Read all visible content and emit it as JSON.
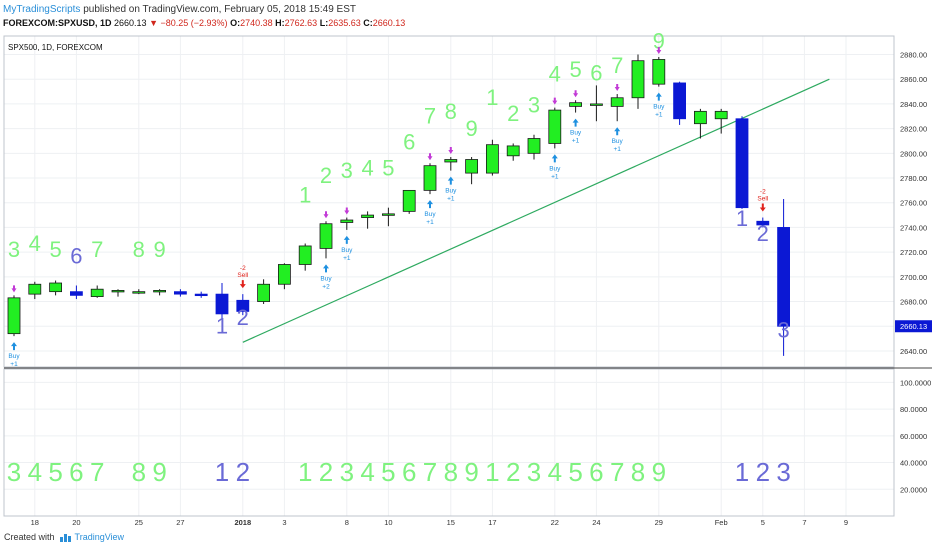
{
  "header": {
    "brand": "MyTradingScripts",
    "published": " published on TradingView.com, February 05, 2018 15:49 EST",
    "symbol": "FOREXCOM:SPXUSD, 1D",
    "price": "2660.13",
    "change": "▼ −80.25 (−2.93%)",
    "o_label": "O:",
    "o": "2740.38",
    "h_label": "H:",
    "h": "2762.63",
    "l_label": "L:",
    "l": "2635.63",
    "c_label": "C:",
    "c": "2660.13"
  },
  "footer": {
    "created": "Created with",
    "tv": "TradingView"
  },
  "colors": {
    "up": "#22ee22",
    "down": "#0b18d4",
    "trend": "#2eaa60",
    "sell": "#e0221c",
    "buy": "#1e90e0",
    "setup_buy": "#7ff27f",
    "setup_sell": "#6a6ad6",
    "marker": "#c23ad6"
  },
  "chart_data": [
    {
      "type": "candlestick",
      "title": "SPX500, 1D, FOREXCOM",
      "ylim": [
        2627,
        2895
      ],
      "y_ticks": [
        2640,
        2660,
        2680,
        2700,
        2720,
        2740,
        2760,
        2780,
        2800,
        2820,
        2840,
        2860,
        2880
      ],
      "y_tick_labels": [
        "2640.00",
        "2660.00",
        "2680.00",
        "2700.00",
        "2720.00",
        "2740.00",
        "2760.00",
        "2780.00",
        "2800.00",
        "2820.00",
        "2840.00",
        "2860.00",
        "2880.00"
      ],
      "current_price_label": "2660.13",
      "x_tick_labels": [
        {
          "i": 1,
          "label": "18"
        },
        {
          "i": 3,
          "label": "20"
        },
        {
          "i": 6,
          "label": "25"
        },
        {
          "i": 8,
          "label": "27"
        },
        {
          "i": 11,
          "label": "2018"
        },
        {
          "i": 13,
          "label": "3"
        },
        {
          "i": 16,
          "label": "8"
        },
        {
          "i": 18,
          "label": "10"
        },
        {
          "i": 21,
          "label": "15"
        },
        {
          "i": 23,
          "label": "17"
        },
        {
          "i": 26,
          "label": "22"
        },
        {
          "i": 28,
          "label": "24"
        },
        {
          "i": 31,
          "label": "29"
        },
        {
          "i": 34,
          "label": "Feb"
        },
        {
          "i": 36,
          "label": "5"
        },
        {
          "i": 38,
          "label": "7"
        },
        {
          "i": 40,
          "label": "9"
        }
      ],
      "candles": [
        {
          "i": 0,
          "o": 2654,
          "h": 2685,
          "l": 2652,
          "c": 2683,
          "label": "3",
          "label_y": 2716
        },
        {
          "i": 1,
          "o": 2686,
          "h": 2696,
          "l": 2682,
          "c": 2694,
          "label": "4",
          "label_y": 2721
        },
        {
          "i": 2,
          "o": 2688,
          "h": 2697,
          "l": 2685,
          "c": 2695,
          "label": "5",
          "label_y": 2716
        },
        {
          "i": 3,
          "o": 2688,
          "h": 2693,
          "l": 2682,
          "c": 2685,
          "label": "6",
          "label_y": 2711
        },
        {
          "i": 4,
          "o": 2684,
          "h": 2693,
          "l": 2683,
          "c": 2690,
          "label": "7",
          "label_y": 2716
        },
        {
          "i": 5,
          "o": 2688,
          "h": 2690,
          "l": 2684,
          "c": 2689
        },
        {
          "i": 6,
          "o": 2688,
          "h": 2690,
          "l": 2686,
          "c": 2688,
          "label": "8",
          "label_y": 2716
        },
        {
          "i": 7,
          "o": 2688,
          "h": 2690,
          "l": 2685,
          "c": 2689,
          "label": "9",
          "label_y": 2716
        },
        {
          "i": 8,
          "o": 2688,
          "h": 2690,
          "l": 2684,
          "c": 2686
        },
        {
          "i": 9,
          "o": 2686,
          "h": 2688,
          "l": 2683,
          "c": 2685
        },
        {
          "i": 10,
          "o": 2686,
          "h": 2695,
          "l": 2665,
          "c": 2670,
          "label": "1",
          "label_y": 2654
        },
        {
          "i": 11,
          "o": 2681,
          "h": 2686,
          "l": 2669,
          "c": 2672,
          "label": "2",
          "label_y": 2661
        },
        {
          "i": 12,
          "o": 2680,
          "h": 2698,
          "l": 2678,
          "c": 2694
        },
        {
          "i": 13,
          "o": 2694,
          "h": 2711,
          "l": 2690,
          "c": 2710
        },
        {
          "i": 14,
          "o": 2710,
          "h": 2727,
          "l": 2705,
          "c": 2725,
          "label": "1",
          "label_y": 2760
        },
        {
          "i": 15,
          "o": 2723,
          "h": 2745,
          "l": 2715,
          "c": 2743,
          "label": "2",
          "label_y": 2776
        },
        {
          "i": 16,
          "o": 2744,
          "h": 2748,
          "l": 2738,
          "c": 2746,
          "label": "3",
          "label_y": 2780
        },
        {
          "i": 17,
          "o": 2748,
          "h": 2753,
          "l": 2739,
          "c": 2750,
          "label": "4",
          "label_y": 2782
        },
        {
          "i": 18,
          "o": 2750,
          "h": 2756,
          "l": 2741,
          "c": 2751,
          "label": "5",
          "label_y": 2782
        },
        {
          "i": 19,
          "o": 2753,
          "h": 2770,
          "l": 2751,
          "c": 2770,
          "label": "6",
          "label_y": 2803
        },
        {
          "i": 20,
          "o": 2770,
          "h": 2792,
          "l": 2767,
          "c": 2790,
          "label": "7",
          "label_y": 2824
        },
        {
          "i": 21,
          "o": 2793,
          "h": 2797,
          "l": 2786,
          "c": 2795,
          "label": "8",
          "label_y": 2828
        },
        {
          "i": 22,
          "o": 2784,
          "h": 2797,
          "l": 2775,
          "c": 2795,
          "label": "9",
          "label_y": 2814
        },
        {
          "i": 23,
          "o": 2784,
          "h": 2811,
          "l": 2782,
          "c": 2807,
          "label": "1",
          "label_y": 2839
        },
        {
          "i": 24,
          "o": 2798,
          "h": 2808,
          "l": 2794,
          "c": 2806,
          "label": "2",
          "label_y": 2826
        },
        {
          "i": 25,
          "o": 2800,
          "h": 2815,
          "l": 2795,
          "c": 2812,
          "label": "3",
          "label_y": 2833
        },
        {
          "i": 26,
          "o": 2808,
          "h": 2837,
          "l": 2804,
          "c": 2835,
          "label": "4",
          "label_y": 2858
        },
        {
          "i": 27,
          "o": 2838,
          "h": 2843,
          "l": 2833,
          "c": 2841,
          "label": "5",
          "label_y": 2862
        },
        {
          "i": 28,
          "o": 2840,
          "h": 2855,
          "l": 2826,
          "c": 2840,
          "label": "6",
          "label_y": 2859
        },
        {
          "i": 29,
          "o": 2838,
          "h": 2848,
          "l": 2826,
          "c": 2845,
          "label": "7",
          "label_y": 2865
        },
        {
          "i": 30,
          "o": 2845,
          "h": 2880,
          "l": 2836,
          "c": 2875
        },
        {
          "i": 31,
          "o": 2856,
          "h": 2878,
          "l": 2854,
          "c": 2876,
          "label": "9",
          "label_y": 2885
        },
        {
          "i": 32,
          "o": 2857,
          "h": 2858,
          "l": 2823,
          "c": 2828
        },
        {
          "i": 33,
          "o": 2824,
          "h": 2836,
          "l": 2812,
          "c": 2834
        },
        {
          "i": 34,
          "o": 2828,
          "h": 2836,
          "l": 2816,
          "c": 2834
        },
        {
          "i": 35,
          "o": 2828,
          "h": 2830,
          "l": 2755,
          "c": 2756,
          "label": "1",
          "label_y": 2741
        },
        {
          "i": 36,
          "o": 2745,
          "h": 2748,
          "l": 2740,
          "c": 2742,
          "label": "2",
          "label_y": 2729
        },
        {
          "i": 37,
          "o": 2740,
          "h": 2763,
          "l": 2636,
          "c": 2660,
          "label": "3",
          "label_y": 2651
        }
      ],
      "trendline": {
        "from": {
          "i": 11,
          "price": 2647
        },
        "to": {
          "i": 39.2,
          "price": 2860
        }
      },
      "signals": [
        {
          "i": 0,
          "type": "buy",
          "label": "Buy",
          "count": "+1"
        },
        {
          "i": 11,
          "type": "sell",
          "label": "Sell",
          "count": "-2"
        },
        {
          "i": 15,
          "type": "buy",
          "label": "Buy",
          "count": "+2"
        },
        {
          "i": 16,
          "type": "buy",
          "label": "Buy",
          "count": "+1"
        },
        {
          "i": 20,
          "type": "buy",
          "label": "Buy",
          "count": "+1"
        },
        {
          "i": 21,
          "type": "buy",
          "label": "Buy",
          "count": "+1"
        },
        {
          "i": 26,
          "type": "buy",
          "label": "Buy",
          "count": "+1"
        },
        {
          "i": 27,
          "type": "buy",
          "label": "Buy",
          "count": "+1"
        },
        {
          "i": 29,
          "type": "buy",
          "label": "Buy",
          "count": "+1"
        },
        {
          "i": 31,
          "type": "buy",
          "label": "Buy",
          "count": "+1"
        },
        {
          "i": 36,
          "type": "sell",
          "label": "Sell",
          "count": "-2"
        }
      ]
    },
    {
      "type": "indicator",
      "ylim": [
        0,
        110
      ],
      "y_ticks": [
        20,
        40,
        60,
        80,
        100
      ],
      "y_tick_labels": [
        "20.0000",
        "40.0000",
        "60.0000",
        "80.0000",
        "100.0000"
      ],
      "counts": [
        {
          "i": 0,
          "label": "3",
          "dir": "buy"
        },
        {
          "i": 1,
          "label": "4",
          "dir": "buy"
        },
        {
          "i": 2,
          "label": "5",
          "dir": "buy"
        },
        {
          "i": 3,
          "label": "6",
          "dir": "buy"
        },
        {
          "i": 4,
          "label": "7",
          "dir": "buy"
        },
        {
          "i": 6,
          "label": "8",
          "dir": "buy"
        },
        {
          "i": 7,
          "label": "9",
          "dir": "buy"
        },
        {
          "i": 10,
          "label": "1",
          "dir": "sell"
        },
        {
          "i": 11,
          "label": "2",
          "dir": "sell"
        },
        {
          "i": 14,
          "label": "1",
          "dir": "buy"
        },
        {
          "i": 15,
          "label": "2",
          "dir": "buy"
        },
        {
          "i": 16,
          "label": "3",
          "dir": "buy"
        },
        {
          "i": 17,
          "label": "4",
          "dir": "buy"
        },
        {
          "i": 18,
          "label": "5",
          "dir": "buy"
        },
        {
          "i": 19,
          "label": "6",
          "dir": "buy"
        },
        {
          "i": 20,
          "label": "7",
          "dir": "buy"
        },
        {
          "i": 21,
          "label": "8",
          "dir": "buy"
        },
        {
          "i": 22,
          "label": "9",
          "dir": "buy"
        },
        {
          "i": 23,
          "label": "1",
          "dir": "buy"
        },
        {
          "i": 24,
          "label": "2",
          "dir": "buy"
        },
        {
          "i": 25,
          "label": "3",
          "dir": "buy"
        },
        {
          "i": 26,
          "label": "4",
          "dir": "buy"
        },
        {
          "i": 27,
          "label": "5",
          "dir": "buy"
        },
        {
          "i": 28,
          "label": "6",
          "dir": "buy"
        },
        {
          "i": 29,
          "label": "7",
          "dir": "buy"
        },
        {
          "i": 30,
          "label": "8",
          "dir": "buy"
        },
        {
          "i": 31,
          "label": "9",
          "dir": "buy"
        },
        {
          "i": 35,
          "label": "1",
          "dir": "sell"
        },
        {
          "i": 36,
          "label": "2",
          "dir": "sell"
        },
        {
          "i": 37,
          "label": "3",
          "dir": "sell"
        }
      ]
    }
  ]
}
